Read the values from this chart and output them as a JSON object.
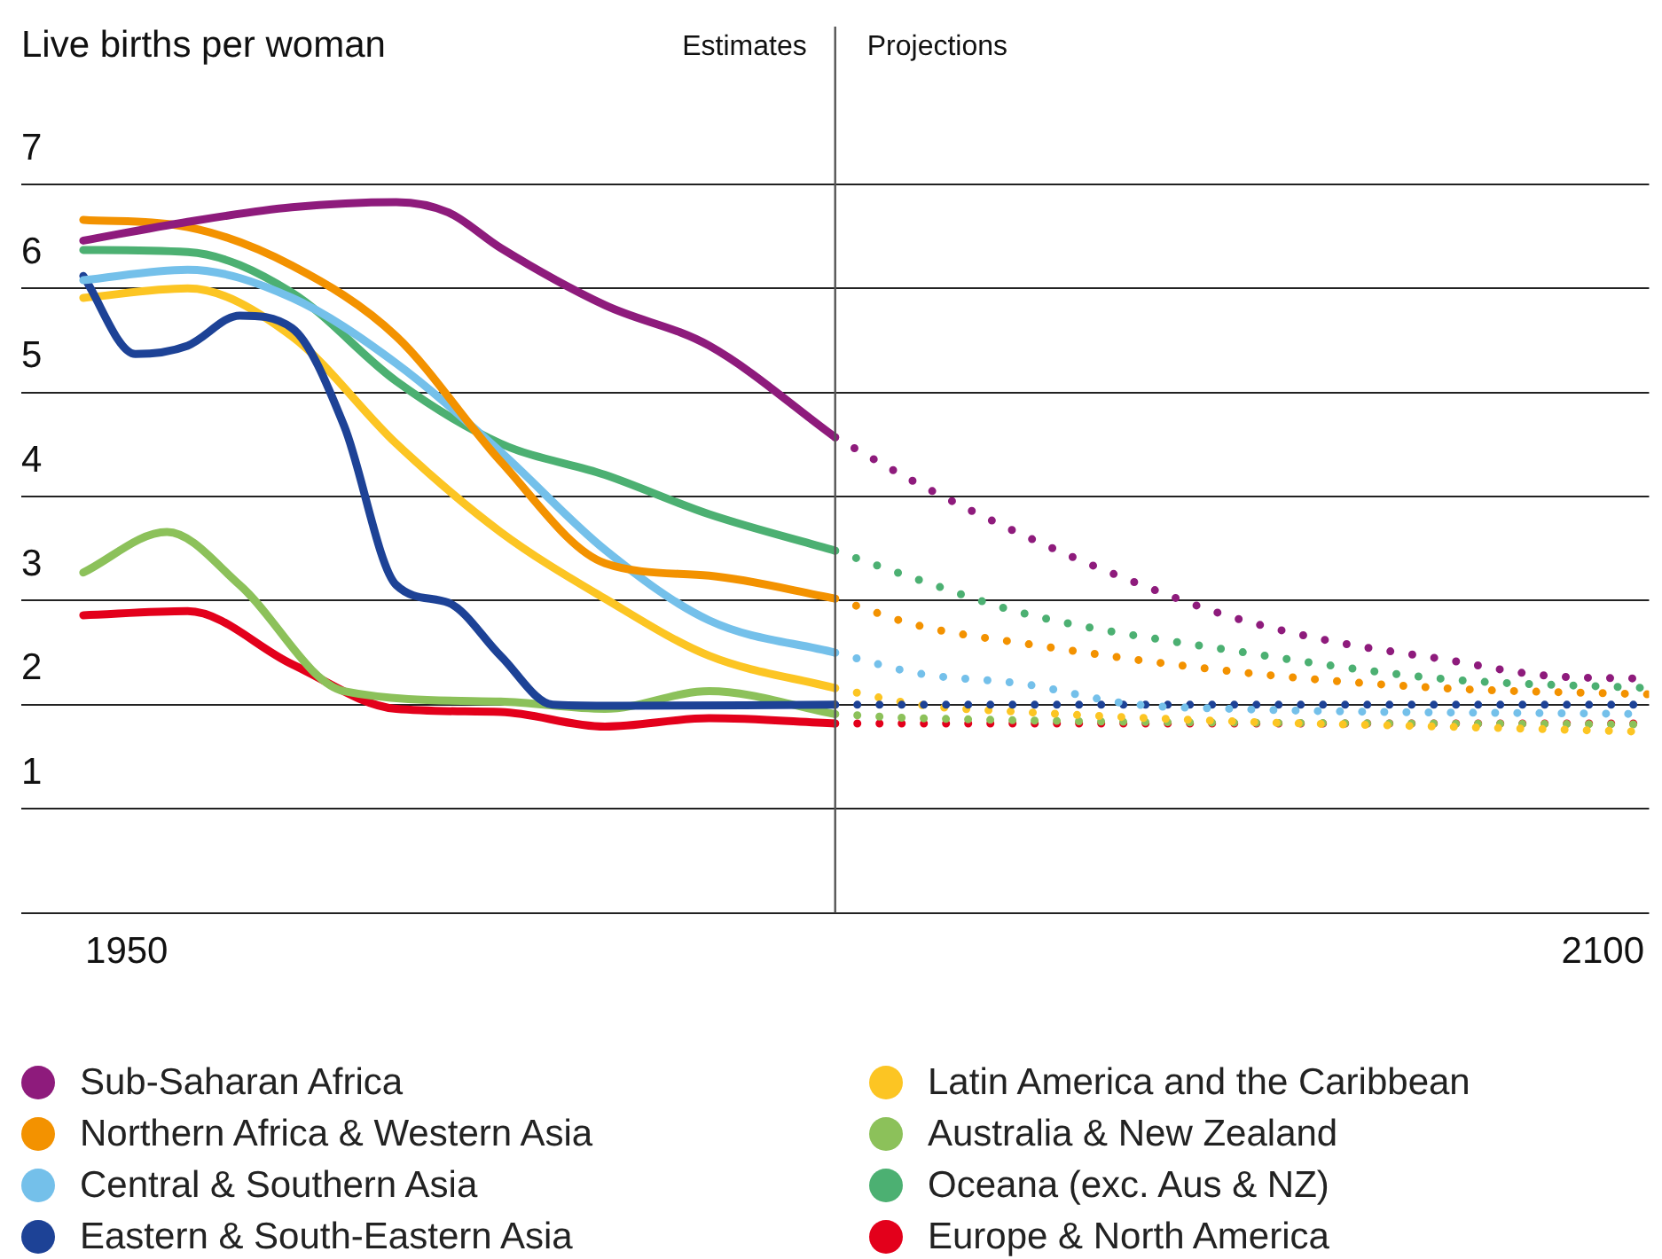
{
  "chart_data": {
    "type": "line",
    "ylabel": "Live births per woman",
    "xlim": [
      1939.3,
      2104.7
    ],
    "xticks": [
      1950,
      2100
    ],
    "ylim": [
      0,
      7
    ],
    "yticks": [
      {
        "value": 0,
        "label": null
      },
      1,
      2,
      3,
      4,
      5,
      6,
      7
    ],
    "grid": "y",
    "marker": "none",
    "legend": "bottom",
    "ref_lines": [
      {
        "axis": "x",
        "value": 2022,
        "label": "Estimates",
        "color": "#555555"
      }
    ],
    "annotations": [
      {
        "text": "Projections",
        "x": 2022
      }
    ],
    "series": [
      {
        "name": "Sub-Saharan Africa",
        "color": "#8e1b7c",
        "line_style": "solid",
        "x": [
          1945.6,
          1956.2,
          1966.8,
          1977.4,
          1982.7,
          1988.0,
          1998.6,
          2009.2,
          2022
        ],
        "values": [
          6.46,
          6.64,
          6.78,
          6.83,
          6.73,
          6.39,
          5.84,
          5.45,
          4.57
        ]
      },
      {
        "color": "#8e1b7c",
        "line_style": "dotted",
        "x": [
          2022,
          2030.5,
          2041.1,
          2051.8,
          2062.4,
          2073.0,
          2083.6,
          2094.2,
          2104.6
        ],
        "values": [
          4.57,
          4.12,
          3.63,
          3.2,
          2.84,
          2.6,
          2.44,
          2.28,
          2.25
        ]
      },
      {
        "name": "Northern Africa & Western Asia",
        "color": "#f39200",
        "line_style": "solid",
        "x": [
          1945.6,
          1956.2,
          1966.8,
          1977.4,
          1988.0,
          1998.6,
          2009.2,
          2022
        ],
        "values": [
          6.66,
          6.59,
          6.22,
          5.54,
          4.34,
          3.36,
          3.24,
          3.02
        ]
      },
      {
        "color": "#f39200",
        "line_style": "dotted",
        "x": [
          2022,
          2030.5,
          2041.1,
          2062.4,
          2083.6,
          2104.6
        ],
        "values": [
          3.02,
          2.76,
          2.59,
          2.32,
          2.16,
          2.1
        ]
      },
      {
        "name": "Central & Southern Asia",
        "color": "#74c0ea",
        "line_style": "solid",
        "x": [
          1945.6,
          1956.2,
          1966.8,
          1977.4,
          1988.0,
          1998.6,
          2009.2,
          2022
        ],
        "values": [
          6.08,
          6.18,
          5.91,
          5.28,
          4.43,
          3.49,
          2.81,
          2.5
        ]
      },
      {
        "color": "#74c0ea",
        "line_style": "dotted",
        "x": [
          2022,
          2030.5,
          2041.1,
          2051.8,
          2062.4,
          2104.6
        ],
        "values": [
          2.5,
          2.3,
          2.2,
          2.01,
          1.96,
          1.91
        ]
      },
      {
        "name": "Eastern & South-Eastern Asia",
        "color": "#1d4296",
        "line_style": "solid",
        "x": [
          1945.6,
          1950.9,
          1956.2,
          1961.5,
          1966.8,
          1972.1,
          1977.4,
          1982.7,
          1988.0,
          1993.3,
          1998.6,
          2022
        ],
        "values": [
          6.12,
          5.37,
          5.45,
          5.74,
          5.62,
          4.68,
          3.15,
          2.98,
          2.47,
          2.0,
          1.99,
          2.0
        ]
      },
      {
        "color": "#1d4296",
        "line_style": "dotted",
        "x": [
          2022,
          2104.6
        ],
        "values": [
          2.0,
          2.0
        ]
      },
      {
        "name": "Latin America and the Caribbean",
        "color": "#fcc523",
        "line_style": "solid",
        "x": [
          1945.6,
          1956.2,
          1966.8,
          1977.4,
          1988.0,
          1998.6,
          2009.2,
          2022
        ],
        "values": [
          5.91,
          6.0,
          5.54,
          4.51,
          3.66,
          3.02,
          2.47,
          2.16
        ]
      },
      {
        "color": "#fcc523",
        "line_style": "dotted",
        "x": [
          2022,
          2030.5,
          2041.1,
          2062.4,
          2083.6,
          2104.6
        ],
        "values": [
          2.16,
          2.0,
          1.93,
          1.84,
          1.79,
          1.74
        ]
      },
      {
        "name": "Australia & New Zealand",
        "color": "#8cc15a",
        "line_style": "solid",
        "x": [
          1945.6,
          1954.1,
          1961.5,
          1972.1,
          1988.0,
          1998.6,
          2009.2,
          2022
        ],
        "values": [
          3.27,
          3.66,
          3.15,
          2.13,
          2.03,
          1.96,
          2.13,
          1.91
        ]
      },
      {
        "color": "#8cc15a",
        "line_style": "dotted",
        "x": [
          2022,
          2030.5,
          2104.6
        ],
        "values": [
          1.91,
          1.87,
          1.81
        ]
      },
      {
        "name": "Oceana (exc. Aus & NZ)",
        "color": "#4cb072",
        "line_style": "solid",
        "x": [
          1945.6,
          1956.2,
          1966.8,
          1977.4,
          1988.0,
          1998.6,
          2009.2,
          2022
        ],
        "values": [
          6.37,
          6.35,
          5.96,
          5.11,
          4.51,
          4.21,
          3.83,
          3.48
        ]
      },
      {
        "color": "#4cb072",
        "line_style": "dotted",
        "x": [
          2022,
          2030.5,
          2041.1,
          2062.4,
          2083.6,
          2104.6
        ],
        "values": [
          3.48,
          3.2,
          2.88,
          2.52,
          2.25,
          2.16
        ]
      },
      {
        "name": "Europe & North America",
        "color": "#e3001b",
        "line_style": "solid",
        "x": [
          1945.6,
          1956.2,
          1966.8,
          1977.4,
          1988.0,
          1998.6,
          2009.2,
          2022
        ],
        "values": [
          2.86,
          2.9,
          2.39,
          1.96,
          1.93,
          1.79,
          1.87,
          1.82
        ]
      },
      {
        "color": "#e3001b",
        "line_style": "dotted",
        "x": [
          2022,
          2104.6
        ],
        "values": [
          1.82,
          1.82
        ]
      }
    ]
  }
}
